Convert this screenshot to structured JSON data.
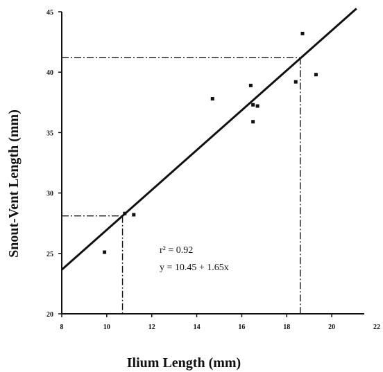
{
  "chart_data": {
    "type": "scatter",
    "xlabel": "Ilium Length (mm)",
    "ylabel": "Snout-Vent Length (mm)",
    "xlim": [
      8,
      22
    ],
    "ylim": [
      20,
      45
    ],
    "xticks": [
      "8",
      "10",
      "12",
      "14",
      "16",
      "18",
      "20",
      "22"
    ],
    "yticks": [
      "20",
      "25",
      "30",
      "35",
      "40",
      "45"
    ],
    "points": [
      {
        "x": 9.9,
        "y": 25.1
      },
      {
        "x": 10.8,
        "y": 28.3
      },
      {
        "x": 11.2,
        "y": 28.2
      },
      {
        "x": 14.7,
        "y": 37.8
      },
      {
        "x": 16.4,
        "y": 38.9
      },
      {
        "x": 16.5,
        "y": 37.3
      },
      {
        "x": 16.5,
        "y": 35.9
      },
      {
        "x": 16.7,
        "y": 37.2
      },
      {
        "x": 18.4,
        "y": 39.2
      },
      {
        "x": 18.7,
        "y": 43.2
      },
      {
        "x": 19.3,
        "y": 39.8
      }
    ],
    "regression": {
      "intercept": 10.45,
      "slope": 1.65,
      "x_range": [
        8,
        21.1
      ]
    },
    "reference_lines": [
      {
        "x": 10.7,
        "y": 28.1
      },
      {
        "x": 18.6,
        "y": 41.2
      }
    ],
    "annotations": [
      "r² = 0.92",
      "y = 10.45 + 1.65x"
    ],
    "grid": false
  }
}
